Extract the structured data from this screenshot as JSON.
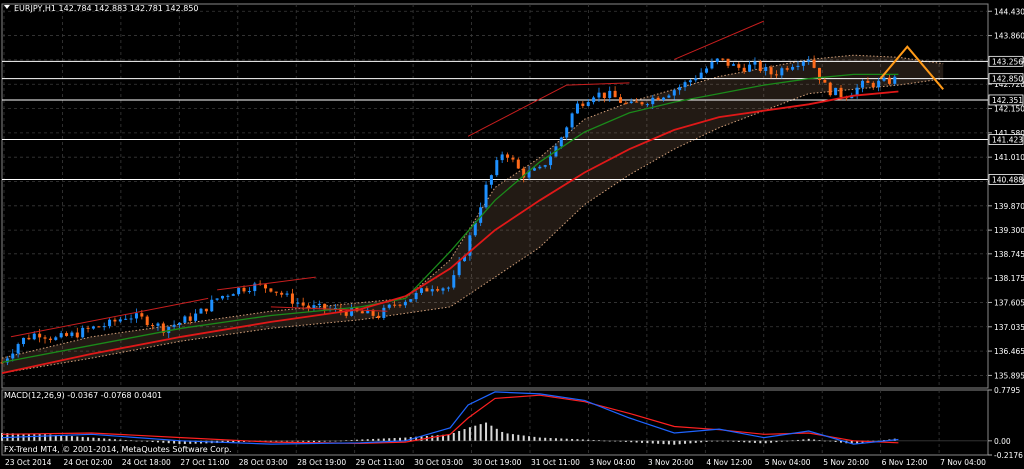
{
  "header": {
    "symbol_label": "EURJPY,H1  142.784 142.883 142.781 142.850",
    "menu_glyph": "▼"
  },
  "macd_header": {
    "label": "MACD(12,26,9) -0.0367 -0.0768 0.0401"
  },
  "copyright": "FX-Trend MT4, © 2001-2014, MetaQuotes Software Corp.",
  "colors": {
    "background": "#000000",
    "grid": "#3a3a3a",
    "bull": "#1e90ff",
    "bear": "#ff6a1a",
    "ma_slow": "#e01818",
    "ma_fast": "#1a8a1a",
    "cloud": "#d2a07a",
    "forecast": "#ff9a18",
    "trendline": "#c81e1e",
    "macd_hist": "#d8d8d8",
    "macd_line": "#1e64ff",
    "signal_line": "#ff2020",
    "label_box": "#000000",
    "axis_text": "#ffffff"
  },
  "chart_data": [
    {
      "type": "candlestick",
      "symbol": "EURJPY",
      "timeframe": "H1",
      "title": "EURJPY,H1  142.784 142.883 142.781 142.850",
      "ohlc": {
        "open": 142.784,
        "high": 142.883,
        "low": 142.781,
        "close": 142.85
      },
      "ylim": [
        135.6,
        144.6
      ],
      "y_ticks": [
        "144.430",
        "143.860",
        "143.290",
        "142.720",
        "142.150",
        "141.580",
        "141.010",
        "140.440",
        "139.870",
        "139.300",
        "138.745",
        "138.175",
        "137.605",
        "137.035",
        "136.465",
        "135.895"
      ],
      "horizontal_levels": [
        {
          "label": "143.256",
          "value": 143.256
        },
        {
          "label": "142.850",
          "value": 142.85
        },
        {
          "label": "142.351",
          "value": 142.351
        },
        {
          "label": "141.423",
          "value": 141.423
        },
        {
          "label": "140.488",
          "value": 140.488
        }
      ],
      "x_ticks": [
        "23 Oct 2014",
        "24 Oct 02:00",
        "24 Oct 18:00",
        "27 Oct 11:00",
        "28 Oct 03:00",
        "28 Oct 19:00",
        "29 Oct 11:00",
        "30 Oct 03:00",
        "30 Oct 19:00",
        "31 Oct 11:00",
        "3 Nov 04:00",
        "3 Nov 20:00",
        "4 Nov 12:00",
        "5 Nov 04:00",
        "5 Nov 20:00",
        "6 Nov 12:00",
        "7 Nov 04:00"
      ],
      "close_path": [
        [
          0,
          136.2
        ],
        [
          4,
          136.7
        ],
        [
          8,
          136.9
        ],
        [
          12,
          136.75
        ],
        [
          16,
          136.85
        ],
        [
          20,
          137.0
        ],
        [
          24,
          137.1
        ],
        [
          28,
          137.3
        ],
        [
          32,
          137.2
        ],
        [
          36,
          137.0
        ],
        [
          40,
          137.15
        ],
        [
          44,
          137.35
        ],
        [
          48,
          137.7
        ],
        [
          52,
          137.9
        ],
        [
          56,
          138.0
        ],
        [
          60,
          137.95
        ],
        [
          64,
          137.7
        ],
        [
          68,
          137.5
        ],
        [
          72,
          137.45
        ],
        [
          76,
          137.4
        ],
        [
          80,
          137.35
        ],
        [
          84,
          137.3
        ],
        [
          88,
          137.6
        ],
        [
          92,
          137.75
        ],
        [
          96,
          138.0
        ],
        [
          100,
          137.95
        ],
        [
          104,
          139.0
        ],
        [
          108,
          140.3
        ],
        [
          112,
          141.2
        ],
        [
          116,
          140.6
        ],
        [
          120,
          140.7
        ],
        [
          124,
          141.3
        ],
        [
          128,
          142.2
        ],
        [
          132,
          142.5
        ],
        [
          136,
          142.45
        ],
        [
          140,
          142.2
        ],
        [
          144,
          142.35
        ],
        [
          148,
          142.5
        ],
        [
          152,
          142.7
        ],
        [
          156,
          143.0
        ],
        [
          160,
          143.3
        ],
        [
          164,
          143.1
        ],
        [
          168,
          143.15
        ],
        [
          172,
          142.95
        ],
        [
          176,
          143.2
        ],
        [
          180,
          143.35
        ],
        [
          184,
          142.6
        ],
        [
          188,
          142.45
        ],
        [
          192,
          142.7
        ],
        [
          196,
          142.75
        ],
        [
          200,
          142.85
        ]
      ],
      "x_range": [
        0,
        220
      ],
      "ma_slow": [
        [
          0,
          135.95
        ],
        [
          20,
          136.4
        ],
        [
          40,
          136.8
        ],
        [
          60,
          137.15
        ],
        [
          80,
          137.45
        ],
        [
          90,
          137.75
        ],
        [
          100,
          138.4
        ],
        [
          110,
          139.3
        ],
        [
          120,
          140.0
        ],
        [
          130,
          140.65
        ],
        [
          140,
          141.2
        ],
        [
          150,
          141.65
        ],
        [
          160,
          141.95
        ],
        [
          170,
          142.1
        ],
        [
          180,
          142.25
        ],
        [
          190,
          142.45
        ],
        [
          200,
          142.55
        ]
      ],
      "ma_fast": [
        [
          0,
          136.2
        ],
        [
          20,
          136.6
        ],
        [
          40,
          137.0
        ],
        [
          60,
          137.3
        ],
        [
          80,
          137.5
        ],
        [
          90,
          137.7
        ],
        [
          100,
          138.8
        ],
        [
          110,
          140.0
        ],
        [
          120,
          140.9
        ],
        [
          130,
          141.6
        ],
        [
          140,
          142.05
        ],
        [
          150,
          142.3
        ],
        [
          160,
          142.5
        ],
        [
          170,
          142.7
        ],
        [
          180,
          142.85
        ],
        [
          190,
          142.95
        ],
        [
          200,
          142.95
        ]
      ],
      "cloud_top": [
        [
          0,
          136.3
        ],
        [
          20,
          136.8
        ],
        [
          40,
          137.1
        ],
        [
          60,
          137.4
        ],
        [
          80,
          137.6
        ],
        [
          90,
          137.7
        ],
        [
          100,
          138.6
        ],
        [
          110,
          140.3
        ],
        [
          120,
          141.0
        ],
        [
          130,
          141.9
        ],
        [
          140,
          142.3
        ],
        [
          150,
          142.6
        ],
        [
          160,
          142.9
        ],
        [
          170,
          143.1
        ],
        [
          180,
          143.3
        ],
        [
          190,
          143.4
        ],
        [
          200,
          143.35
        ],
        [
          210,
          143.2
        ]
      ],
      "cloud_bottom": [
        [
          0,
          135.95
        ],
        [
          20,
          136.3
        ],
        [
          40,
          136.7
        ],
        [
          60,
          137.0
        ],
        [
          80,
          137.2
        ],
        [
          90,
          137.35
        ],
        [
          100,
          137.5
        ],
        [
          110,
          138.2
        ],
        [
          120,
          138.9
        ],
        [
          130,
          139.9
        ],
        [
          140,
          140.6
        ],
        [
          150,
          141.2
        ],
        [
          160,
          141.7
        ],
        [
          170,
          142.1
        ],
        [
          180,
          142.5
        ],
        [
          190,
          142.6
        ],
        [
          200,
          142.7
        ],
        [
          210,
          142.85
        ]
      ],
      "forecast": [
        [
          196,
          142.85
        ],
        [
          202,
          143.6
        ],
        [
          210,
          142.6
        ]
      ],
      "trendlines": [
        [
          [
            2,
            136.8
          ],
          [
            46,
            137.7
          ]
        ],
        [
          [
            48,
            137.9
          ],
          [
            70,
            138.2
          ]
        ],
        [
          [
            104,
            141.5
          ],
          [
            126,
            142.7
          ]
        ],
        [
          [
            126,
            142.7
          ],
          [
            140,
            142.75
          ]
        ],
        [
          [
            150,
            143.3
          ],
          [
            170,
            144.2
          ]
        ],
        [
          [
            60,
            137.5
          ],
          [
            86,
            137.4
          ]
        ]
      ]
    },
    {
      "type": "macd",
      "title": "MACD(12,26,9) -0.0367 -0.0768 0.0401",
      "params": [
        12,
        26,
        9
      ],
      "values": {
        "macd": -0.0367,
        "signal": -0.0768,
        "histogram": 0.0401
      },
      "ylim": [
        -0.2176,
        0.7795
      ],
      "y_ticks": [
        "0.7795",
        "0.00",
        "-0.2176"
      ],
      "macd_line": [
        [
          0,
          0.05
        ],
        [
          20,
          0.1
        ],
        [
          40,
          0.0
        ],
        [
          60,
          -0.05
        ],
        [
          80,
          -0.03
        ],
        [
          90,
          0.0
        ],
        [
          100,
          0.2
        ],
        [
          104,
          0.55
        ],
        [
          110,
          0.75
        ],
        [
          120,
          0.72
        ],
        [
          130,
          0.62
        ],
        [
          140,
          0.35
        ],
        [
          150,
          0.12
        ],
        [
          160,
          0.18
        ],
        [
          170,
          0.05
        ],
        [
          180,
          0.15
        ],
        [
          190,
          -0.05
        ],
        [
          200,
          0.02
        ]
      ],
      "signal_line": [
        [
          0,
          0.1
        ],
        [
          20,
          0.12
        ],
        [
          40,
          0.05
        ],
        [
          60,
          -0.02
        ],
        [
          80,
          -0.04
        ],
        [
          90,
          -0.02
        ],
        [
          100,
          0.1
        ],
        [
          104,
          0.35
        ],
        [
          110,
          0.65
        ],
        [
          120,
          0.7
        ],
        [
          130,
          0.6
        ],
        [
          140,
          0.42
        ],
        [
          150,
          0.22
        ],
        [
          160,
          0.17
        ],
        [
          170,
          0.1
        ],
        [
          180,
          0.12
        ],
        [
          190,
          0.0
        ],
        [
          200,
          -0.03
        ]
      ],
      "histogram": [
        [
          0,
          0.12
        ],
        [
          10,
          0.1
        ],
        [
          20,
          0.05
        ],
        [
          30,
          0.0
        ],
        [
          40,
          -0.05
        ],
        [
          50,
          -0.03
        ],
        [
          60,
          0.0
        ],
        [
          70,
          -0.02
        ],
        [
          80,
          0.02
        ],
        [
          90,
          0.05
        ],
        [
          100,
          0.1
        ],
        [
          104,
          0.2
        ],
        [
          108,
          0.28
        ],
        [
          112,
          0.12
        ],
        [
          120,
          0.05
        ],
        [
          130,
          0.02
        ],
        [
          140,
          -0.02
        ],
        [
          150,
          -0.06
        ],
        [
          160,
          0.0
        ],
        [
          170,
          -0.04
        ],
        [
          180,
          0.03
        ],
        [
          190,
          -0.05
        ],
        [
          200,
          0.04
        ]
      ]
    }
  ]
}
